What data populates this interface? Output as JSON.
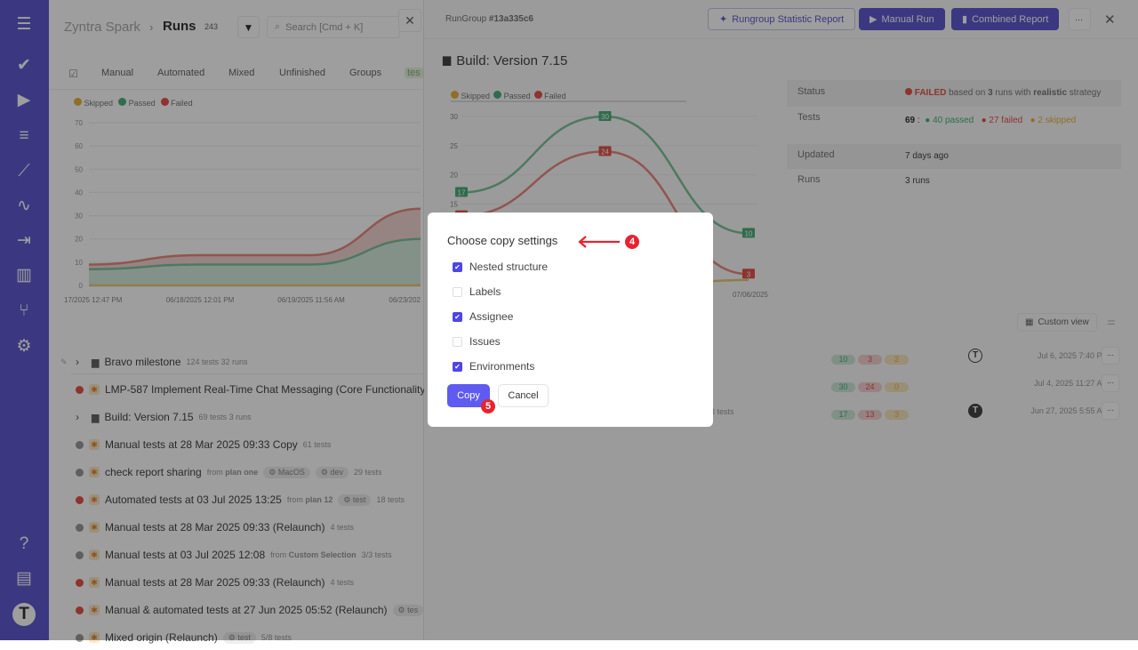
{
  "sidebar": {
    "icons": [
      "menu-icon",
      "check-icon",
      "play-icon",
      "list-check-icon",
      "steps-icon",
      "pulse-icon",
      "import-icon",
      "analytics-icon",
      "branch-icon",
      "gear-icon",
      "help-icon",
      "folders-icon",
      "avatar-icon"
    ]
  },
  "left": {
    "breadcrumb_project": "Zyntra Spark",
    "breadcrumb_sep": "›",
    "title": "Runs",
    "count": "243",
    "search_placeholder": "Search [Cmd + K]",
    "tabs": [
      "Manual",
      "Automated",
      "Mixed",
      "Unfinished",
      "Groups",
      "tes"
    ],
    "legend": [
      "Skipped",
      "Passed",
      "Failed"
    ],
    "chart": {
      "y_ticks": [
        0,
        10,
        20,
        30,
        40,
        50,
        60,
        70
      ],
      "x_labels": [
        "17/2025 12:47 PM",
        "06/18/2025 12:01 PM",
        "06/19/2025 11:56 AM",
        "06/23/202"
      ],
      "passed": [
        7,
        9,
        9,
        20
      ],
      "failed_stacked_total": [
        9,
        13,
        13,
        33
      ],
      "skipped": [
        0,
        0,
        0,
        0
      ]
    },
    "rows": [
      {
        "status": "pin",
        "title": "Bravo milestone",
        "folder": true,
        "expand": true,
        "meta": "124 tests  32 runs"
      },
      {
        "status": "failed",
        "title": "LMP-587 Implement Real-Time Chat Messaging (Core Functionality)",
        "icon": "manual"
      },
      {
        "status": "none",
        "title": "Build: Version 7.15",
        "folder": true,
        "expand": true,
        "meta": "69 tests  3 runs"
      },
      {
        "status": "half",
        "title": "Manual tests at 28 Mar 2025 09:33 Copy",
        "icon": "manual",
        "meta": "61 tests"
      },
      {
        "status": "half",
        "title": "check report sharing",
        "icon": "manual",
        "from": "from",
        "plan": "plan one",
        "chips": [
          "MacOS",
          "dev"
        ],
        "meta": "29 tests"
      },
      {
        "status": "failed",
        "title": "Automated tests at 03 Jul 2025 13:25",
        "icon": "auto",
        "from": "from",
        "plan": "plan 12",
        "chips": [
          "test"
        ],
        "meta": "18 tests"
      },
      {
        "status": "half",
        "title": "Manual tests at 28 Mar 2025 09:33 (Relaunch)",
        "icon": "manual",
        "meta": "4 tests"
      },
      {
        "status": "half",
        "title": "Manual tests at 03 Jul 2025 12:08",
        "icon": "manual",
        "from": "from",
        "plan": "Custom Selection",
        "meta": "3/3 tests"
      },
      {
        "status": "failed",
        "title": "Manual tests at 28 Mar 2025 09:33 (Relaunch)",
        "icon": "manual",
        "meta": "4 tests"
      },
      {
        "status": "failed",
        "title": "Manual & automated tests at 27 Jun 2025 05:52 (Relaunch)",
        "icon": "mixed",
        "chips": [
          "tes"
        ]
      },
      {
        "status": "half",
        "title": "Mixed origin (Relaunch)",
        "icon": "manual",
        "chips": [
          "test"
        ],
        "meta": "5/8 tests"
      }
    ]
  },
  "right": {
    "runid_label": "RunGroup",
    "runid": "#13a335c6",
    "buttons": {
      "stat": "Rungroup Statistic Report",
      "manual": "Manual Run",
      "combined": "Combined Report",
      "more": "···"
    },
    "title": "Build: Version 7.15",
    "legend": [
      "Skipped",
      "Passed",
      "Failed"
    ],
    "chart": {
      "y_ticks": [
        15,
        20,
        25,
        30
      ],
      "x_label_last": "07/06/2025",
      "passed": [
        17,
        30,
        10
      ],
      "failed": [
        13,
        24,
        3
      ],
      "skipped": [
        3,
        0,
        2
      ]
    },
    "info": {
      "status_label": "Status",
      "status_value": "FAILED",
      "status_text1": "based on",
      "status_runs": "3",
      "status_text2": "runs with",
      "status_strategy": "realistic",
      "status_text3": "strategy",
      "tests_label": "Tests",
      "tests_total": "69",
      "tests_passed": "40 passed",
      "tests_failed": "27 failed",
      "tests_skipped_n": "2",
      "tests_skipped": "skipped",
      "updated_label": "Updated",
      "updated_value": "7 days ago",
      "runs_label": "Runs",
      "runs_value": "3 runs"
    },
    "custom_view": "Custom view",
    "runs": [
      {
        "counts": [
          "10",
          "3",
          "2"
        ],
        "date": "Jul 6, 2025 7:40 PM",
        "meta": ""
      },
      {
        "counts": [
          "30",
          "24",
          "0"
        ],
        "date": "Jul 4, 2025 11:27 AM",
        "meta": ""
      },
      {
        "counts": [
          "17",
          "13",
          "3"
        ],
        "date": "Jun 27, 2025 5:55 AM",
        "meta": "3 tests"
      }
    ]
  },
  "modal": {
    "title": "Choose copy settings",
    "options": [
      {
        "label": "Nested structure",
        "checked": true
      },
      {
        "label": "Labels",
        "checked": false
      },
      {
        "label": "Assignee",
        "checked": true
      },
      {
        "label": "Issues",
        "checked": false
      },
      {
        "label": "Environments",
        "checked": true
      }
    ],
    "copy": "Copy",
    "cancel": "Cancel",
    "step_title": "4",
    "step_copy": "5"
  },
  "colors": {
    "accent": "#5f5bd0",
    "passed": "#4caf7d",
    "failed": "#e5534b",
    "skipped": "#e8b43a",
    "annotation": "#e8232f"
  }
}
